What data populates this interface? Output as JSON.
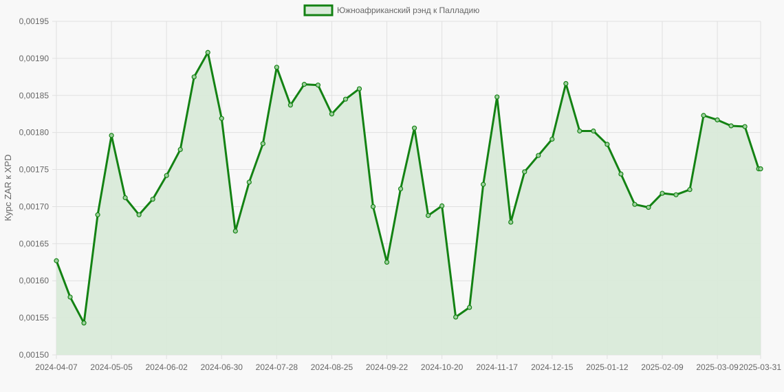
{
  "chart_data": {
    "type": "area",
    "title": "",
    "xlabel": "",
    "ylabel": "Курс ZAR к XPD",
    "legend": {
      "position": "top",
      "label": "Южноафриканский рэнд к Палладию"
    },
    "grid": true,
    "colors": {
      "line": "#138213",
      "fill": "#d9ead9",
      "grid": "#e0e0e0",
      "text": "#666666",
      "background": "#f8f8f8"
    },
    "ylim": [
      0.0015,
      0.00195
    ],
    "y_ticks": [
      "0,00150",
      "0,00155",
      "0,00160",
      "0,00165",
      "0,00170",
      "0,00175",
      "0,00180",
      "0,00185",
      "0,00190",
      "0,00195"
    ],
    "x_ticks": [
      "2024-04-07",
      "2024-05-05",
      "2024-06-02",
      "2024-06-30",
      "2024-07-28",
      "2024-08-25",
      "2024-09-22",
      "2024-10-20",
      "2024-11-17",
      "2024-12-15",
      "2025-01-12",
      "2025-02-09",
      "2025-03-09",
      "2025-03-31"
    ],
    "series": [
      {
        "name": "Южноафриканский рэнд к Палладию",
        "x": [
          "2024-04-07",
          "2024-04-14",
          "2024-04-21",
          "2024-04-28",
          "2024-05-05",
          "2024-05-12",
          "2024-05-19",
          "2024-05-26",
          "2024-06-02",
          "2024-06-09",
          "2024-06-16",
          "2024-06-23",
          "2024-06-30",
          "2024-07-07",
          "2024-07-14",
          "2024-07-21",
          "2024-07-28",
          "2024-08-04",
          "2024-08-11",
          "2024-08-18",
          "2024-08-25",
          "2024-09-01",
          "2024-09-08",
          "2024-09-15",
          "2024-09-22",
          "2024-09-29",
          "2024-10-06",
          "2024-10-13",
          "2024-10-20",
          "2024-10-27",
          "2024-11-03",
          "2024-11-10",
          "2024-11-17",
          "2024-11-24",
          "2024-12-01",
          "2024-12-08",
          "2024-12-15",
          "2024-12-22",
          "2024-12-29",
          "2025-01-05",
          "2025-01-12",
          "2025-01-19",
          "2025-01-26",
          "2025-02-02",
          "2025-02-09",
          "2025-02-16",
          "2025-02-23",
          "2025-03-02",
          "2025-03-09",
          "2025-03-16",
          "2025-03-23",
          "2025-03-30",
          "2025-03-31"
        ],
        "values": [
          0.001627,
          0.001578,
          0.001543,
          0.001689,
          0.001796,
          0.001712,
          0.001689,
          0.00171,
          0.001742,
          0.001777,
          0.001875,
          0.001908,
          0.001819,
          0.001667,
          0.001733,
          0.001785,
          0.001888,
          0.001837,
          0.001865,
          0.001864,
          0.001825,
          0.001845,
          0.001859,
          0.0017,
          0.001625,
          0.001724,
          0.001806,
          0.001688,
          0.001701,
          0.001551,
          0.001564,
          0.00173,
          0.001848,
          0.001679,
          0.001747,
          0.001769,
          0.001791,
          0.001866,
          0.001802,
          0.001802,
          0.001784,
          0.001744,
          0.001703,
          0.001699,
          0.001718,
          0.001716,
          0.001723,
          0.001823,
          0.001817,
          0.001809,
          0.001808,
          0.001751,
          0.001751
        ]
      }
    ]
  }
}
